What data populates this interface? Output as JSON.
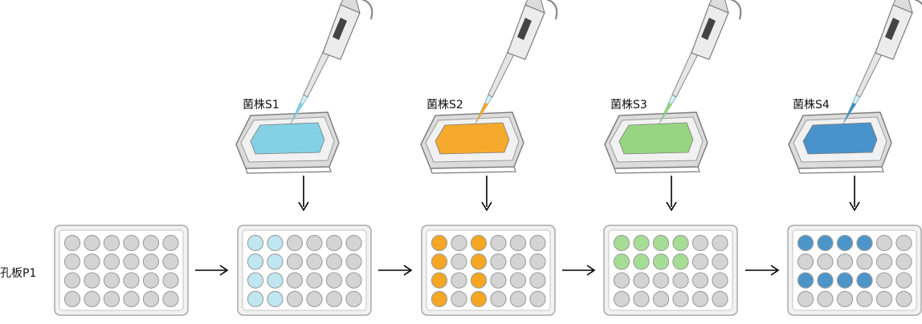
{
  "row_label": "孔板P1",
  "plate": {
    "rows": 4,
    "cols": 6,
    "empty_well_color": "#d4d4d4"
  },
  "strains": [
    {
      "label": "菌株S1",
      "liquid_color": "#7fd0e6",
      "well_color": "#bfe6f1",
      "filled_wells": [
        [
          0,
          0
        ],
        [
          0,
          1
        ],
        [
          1,
          0
        ],
        [
          1,
          1
        ],
        [
          2,
          0
        ],
        [
          2,
          1
        ],
        [
          3,
          0
        ],
        [
          3,
          1
        ]
      ]
    },
    {
      "label": "菌株S2",
      "liquid_color": "#f6a623",
      "well_color": "#f5a623",
      "filled_wells": [
        [
          0,
          0
        ],
        [
          1,
          0
        ],
        [
          2,
          0
        ],
        [
          3,
          0
        ],
        [
          0,
          2
        ],
        [
          1,
          2
        ],
        [
          2,
          2
        ],
        [
          3,
          2
        ]
      ]
    },
    {
      "label": "菌株S3",
      "liquid_color": "#93d47d",
      "well_color": "#a6dd95",
      "filled_wells": [
        [
          0,
          0
        ],
        [
          0,
          1
        ],
        [
          0,
          2
        ],
        [
          0,
          3
        ],
        [
          1,
          0
        ],
        [
          1,
          1
        ],
        [
          1,
          2
        ],
        [
          1,
          3
        ]
      ]
    },
    {
      "label": "菌株S4",
      "liquid_color": "#3f8ec9",
      "well_color": "#4d95c9",
      "filled_wells": [
        [
          0,
          0
        ],
        [
          0,
          1
        ],
        [
          0,
          2
        ],
        [
          0,
          3
        ],
        [
          2,
          0
        ],
        [
          2,
          1
        ],
        [
          2,
          2
        ],
        [
          2,
          3
        ]
      ]
    }
  ]
}
